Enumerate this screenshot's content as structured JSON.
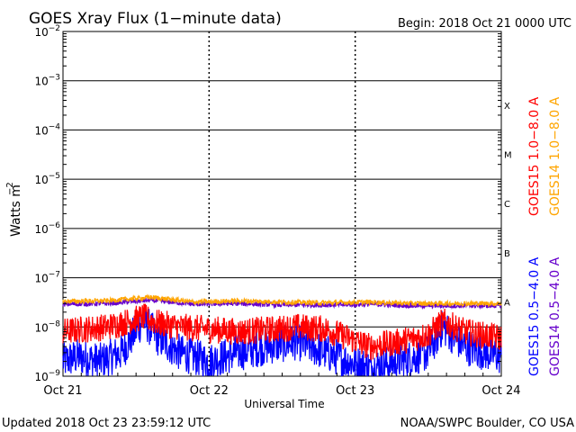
{
  "chart_data": {
    "type": "line",
    "title": "GOES Xray Flux (1−minute data)",
    "begin_label": "Begin:  2018 Oct 21 0000 UTC",
    "xlabel": "Universal Time",
    "ylabel": "Watts m",
    "ylabel_exponent": "−2",
    "x_ticks": [
      "Oct 21",
      "Oct 22",
      "Oct 23",
      "Oct 24"
    ],
    "x_range_days": [
      0,
      3
    ],
    "y_scale": "log",
    "ylim": [
      1e-09,
      0.01
    ],
    "y_ticks": [
      {
        "mantissa": "10",
        "exp": "−2",
        "value": 0.01
      },
      {
        "mantissa": "10",
        "exp": "−3",
        "value": 0.001
      },
      {
        "mantissa": "10",
        "exp": "−4",
        "value": 0.0001
      },
      {
        "mantissa": "10",
        "exp": "−5",
        "value": 1e-05
      },
      {
        "mantissa": "10",
        "exp": "−6",
        "value": 1e-06
      },
      {
        "mantissa": "10",
        "exp": "−7",
        "value": 1e-07
      },
      {
        "mantissa": "10",
        "exp": "−8",
        "value": 1e-08
      },
      {
        "mantissa": "10",
        "exp": "−9",
        "value": 1e-09
      }
    ],
    "flare_classes": [
      {
        "label": "X",
        "value": 0.00032
      },
      {
        "label": "M",
        "value": 3.2e-05
      },
      {
        "label": "C",
        "value": 3.2e-06
      },
      {
        "label": "B",
        "value": 3.2e-07
      },
      {
        "label": "A",
        "value": 3.2e-08
      }
    ],
    "grid": true,
    "series": [
      {
        "name": "GOES15 1.0−8.0 A",
        "color": "#ff0000",
        "days": [
          0,
          0.15,
          0.3,
          0.45,
          0.55,
          0.65,
          0.8,
          1.0,
          1.2,
          1.45,
          1.6,
          1.8,
          1.95,
          2.1,
          2.3,
          2.5,
          2.6,
          2.75,
          2.85,
          3.0
        ],
        "values": [
          8e-09,
          9e-09,
          1e-08,
          1.3e-08,
          1.6e-08,
          1.2e-08,
          1e-08,
          9e-09,
          8e-09,
          9e-09,
          1e-08,
          9e-09,
          6e-09,
          4e-09,
          5e-09,
          7e-09,
          1.3e-08,
          8e-09,
          7e-09,
          6e-09
        ]
      },
      {
        "name": "GOES14 1.0−8.0 A",
        "color": "#ffa500",
        "days": [
          0,
          0.3,
          0.6,
          0.9,
          1.2,
          1.5,
          1.8,
          2.1,
          2.4,
          2.7,
          3.0
        ],
        "values": [
          3.3e-08,
          3.4e-08,
          4e-08,
          3.2e-08,
          3.4e-08,
          3.2e-08,
          3.1e-08,
          3.2e-08,
          3e-08,
          3e-08,
          3e-08
        ]
      },
      {
        "name": "GOES15 0.5−4.0 A",
        "color": "#0000ff",
        "days": [
          0,
          0.1,
          0.25,
          0.4,
          0.55,
          0.65,
          0.8,
          1.0,
          1.2,
          1.4,
          1.6,
          1.8,
          1.95,
          2.1,
          2.3,
          2.5,
          2.6,
          2.75,
          2.9,
          3.0
        ],
        "values": [
          2e-09,
          2.5e-09,
          2e-09,
          3e-09,
          1.4e-08,
          6e-09,
          3e-09,
          2e-09,
          3e-09,
          4e-09,
          5e-09,
          3e-09,
          2e-09,
          1.5e-09,
          2e-09,
          3e-09,
          1e-08,
          4e-09,
          3e-09,
          2.5e-09
        ]
      },
      {
        "name": "GOES14 0.5−4.0 A",
        "color": "#6600cc",
        "days": [
          0,
          0.3,
          0.6,
          0.9,
          1.2,
          1.5,
          1.8,
          2.1,
          2.4,
          2.7,
          3.0
        ],
        "values": [
          2.9e-08,
          3e-08,
          3.5e-08,
          2.9e-08,
          3e-08,
          2.8e-08,
          2.8e-08,
          2.9e-08,
          2.7e-08,
          2.7e-08,
          2.7e-08
        ]
      }
    ],
    "footer_left": "Updated 2018 Oct 23 23:59:12 UTC",
    "footer_right": "NOAA/SWPC Boulder, CO USA"
  }
}
